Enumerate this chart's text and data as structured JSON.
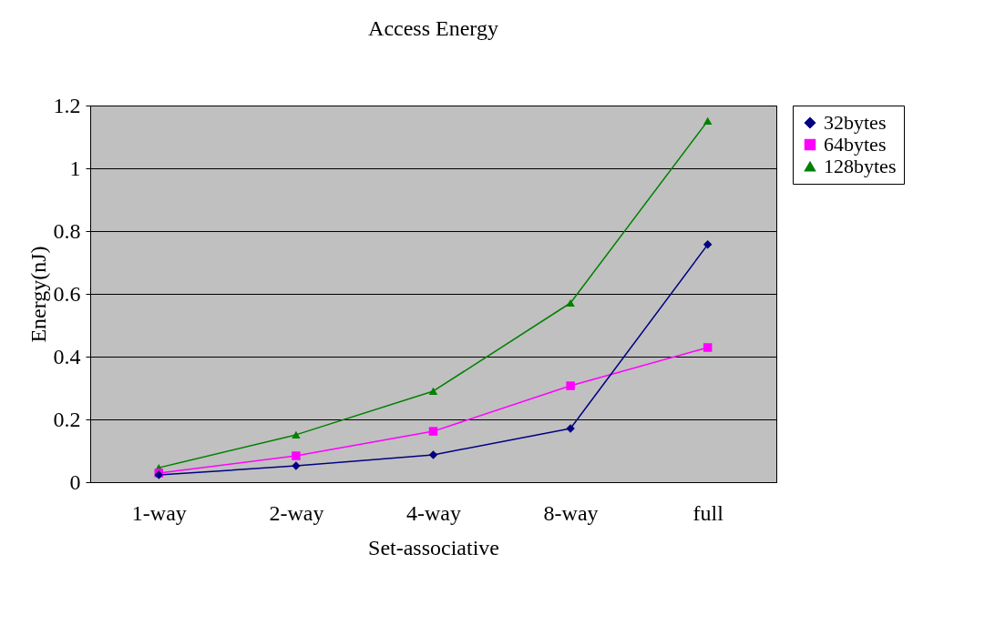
{
  "chart_data": {
    "type": "line",
    "title": "Access Energy",
    "xlabel": "Set-associative",
    "ylabel": "Energy(nJ)",
    "categories": [
      "1-way",
      "2-way",
      "4-way",
      "8-way",
      "full"
    ],
    "series": [
      {
        "name": "32bytes",
        "color": "#000080",
        "marker": "diamond",
        "values": [
          0.023,
          0.052,
          0.087,
          0.171,
          0.757
        ]
      },
      {
        "name": "64bytes",
        "color": "#ff00ff",
        "marker": "square",
        "values": [
          0.029,
          0.084,
          0.162,
          0.307,
          0.429
        ]
      },
      {
        "name": "128bytes",
        "color": "#008000",
        "marker": "triangle",
        "values": [
          0.046,
          0.151,
          0.29,
          0.571,
          1.151
        ]
      }
    ],
    "ylim": [
      0,
      1.2
    ],
    "yticks": [
      0,
      0.2,
      0.4,
      0.6,
      0.8,
      1,
      1.2
    ],
    "grid": "y",
    "legend": "right"
  }
}
